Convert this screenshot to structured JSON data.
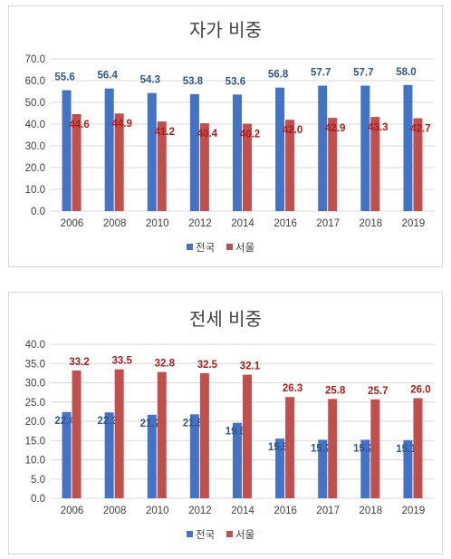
{
  "chart_data": [
    {
      "type": "bar",
      "title": "자가 비중",
      "categories": [
        "2006",
        "2008",
        "2010",
        "2012",
        "2014",
        "2016",
        "2017",
        "2018",
        "2019"
      ],
      "series": [
        {
          "name": "전국",
          "color": "#4472c4",
          "values": [
            55.6,
            56.4,
            54.3,
            53.8,
            53.6,
            56.8,
            57.7,
            57.7,
            58.0
          ]
        },
        {
          "name": "서울",
          "color": "#c0504d",
          "values": [
            44.6,
            44.9,
            41.2,
            40.4,
            40.2,
            42.0,
            42.9,
            43.3,
            42.7
          ]
        }
      ],
      "ylim": [
        0,
        70
      ],
      "yticks": [
        "0.0",
        "10.0",
        "20.0",
        "30.0",
        "40.0",
        "50.0",
        "60.0",
        "70.0"
      ],
      "grid": true,
      "legend": "bottom"
    },
    {
      "type": "bar",
      "title": "전세 비중",
      "categories": [
        "2006",
        "2008",
        "2010",
        "2012",
        "2014",
        "2016",
        "2017",
        "2018",
        "2019"
      ],
      "series": [
        {
          "name": "전국",
          "color": "#4472c4",
          "values": [
            22.4,
            22.3,
            21.7,
            21.8,
            19.6,
            15.5,
            15.2,
            15.2,
            15.1
          ]
        },
        {
          "name": "서울",
          "color": "#c0504d",
          "values": [
            33.2,
            33.5,
            32.8,
            32.5,
            32.1,
            26.3,
            25.8,
            25.7,
            26.0
          ]
        }
      ],
      "ylim": [
        0,
        40
      ],
      "yticks": [
        "0.0",
        "5.0",
        "10.0",
        "15.0",
        "20.0",
        "25.0",
        "30.0",
        "35.0",
        "40.0"
      ],
      "grid": true,
      "legend": "bottom"
    }
  ]
}
